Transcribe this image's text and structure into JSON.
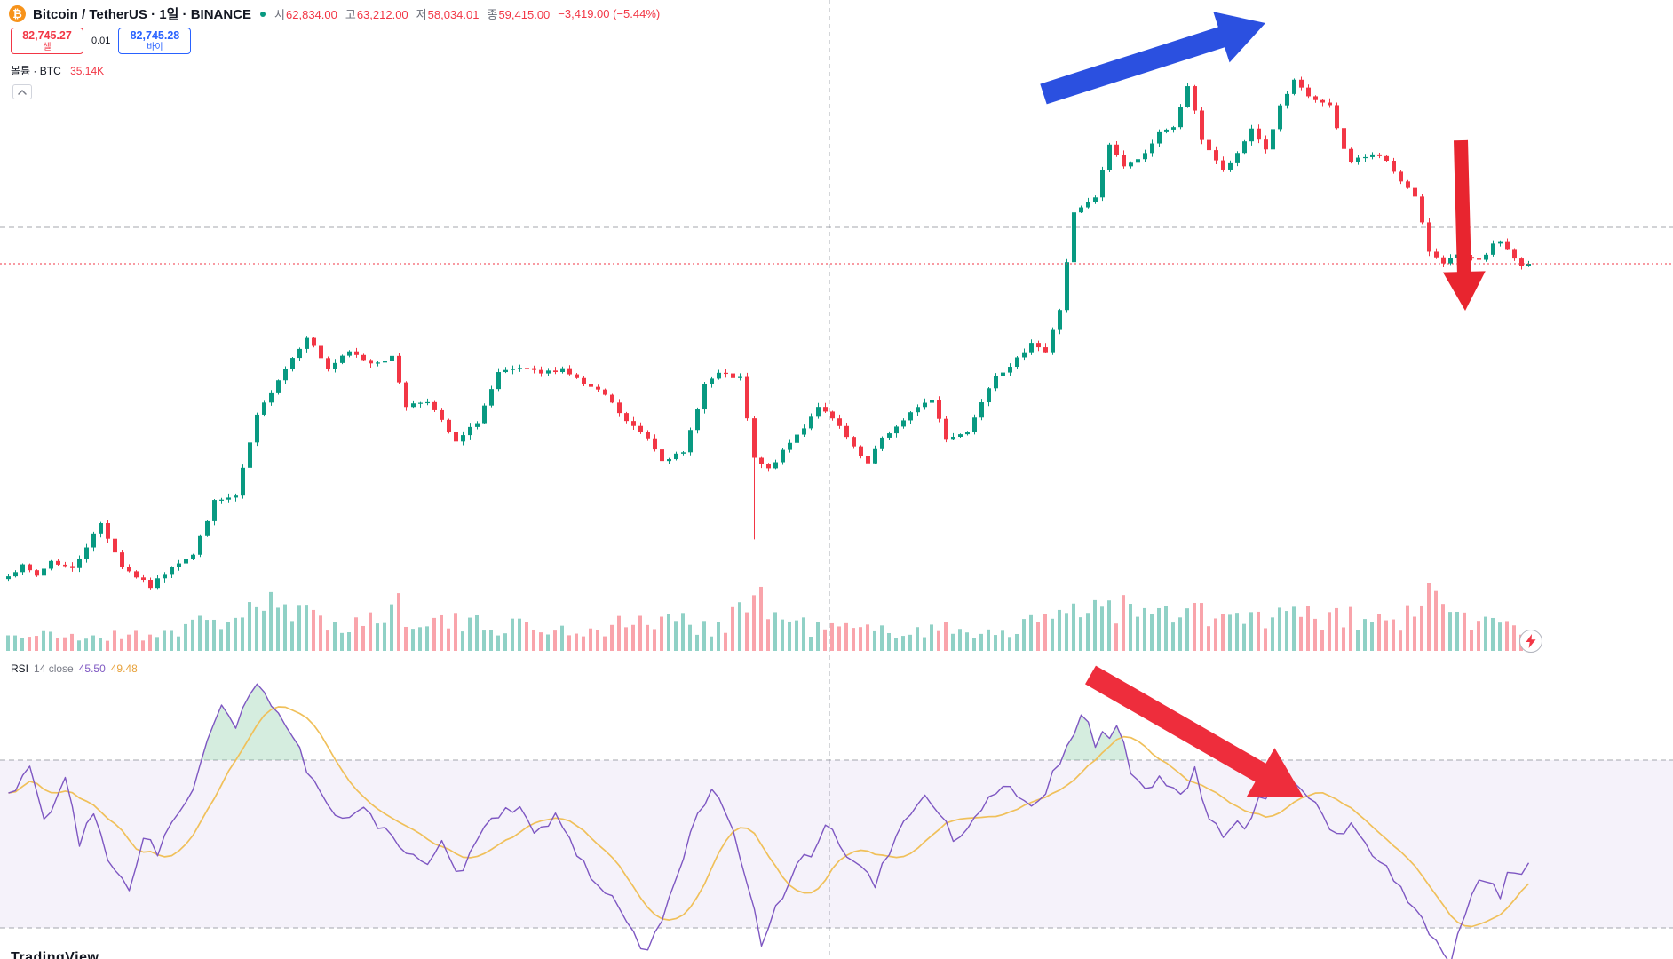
{
  "header": {
    "symbol_logo": "₿",
    "title": "Bitcoin / TetherUS · 1일 · BINANCE",
    "status_color": "#089981",
    "ohlc": [
      {
        "label": "시",
        "value": "62,834.00"
      },
      {
        "label": "고",
        "value": "63,212.00"
      },
      {
        "label": "저",
        "value": "58,034.01"
      },
      {
        "label": "종",
        "value": "59,415.00"
      }
    ],
    "change": "−3,419.00 (−5.44%)",
    "value_color": "#f23645"
  },
  "order_panel": {
    "sell_price": "82,745.27",
    "sell_label": "셀",
    "spread": "0.01",
    "buy_price": "82,745.28",
    "buy_label": "바이",
    "sell_color": "#f23645",
    "buy_color": "#2962ff"
  },
  "volume_row": {
    "label": "볼륨 · BTC",
    "value": "35.14K",
    "value_color": "#f23645"
  },
  "rsi_row": {
    "name": "RSI",
    "params": "14 close",
    "value": "45.50",
    "ma_value": "49.48",
    "value_color": "#7e57c2",
    "ma_color": "#e8a33d"
  },
  "watermark": "TradingView",
  "chart_data": [
    {
      "type": "candlestick",
      "title": "Bitcoin / TetherUS, 1D, BINANCE",
      "last_candle": {
        "open": 62834.0,
        "high": 63212.0,
        "low": 58034.01,
        "close": 59415.0,
        "change": -3419.0,
        "change_pct_text": "−5.44%"
      },
      "price_line_value": 59415.0,
      "n_candles": 215,
      "price_anchors": [
        [
          0,
          36400
        ],
        [
          2,
          37000
        ],
        [
          4,
          36300
        ],
        [
          6,
          37400
        ],
        [
          9,
          36800
        ],
        [
          13,
          40200
        ],
        [
          16,
          37000
        ],
        [
          20,
          35470
        ],
        [
          23,
          37050
        ],
        [
          26,
          37840
        ],
        [
          29,
          41790
        ],
        [
          32,
          42180
        ],
        [
          35,
          48110
        ],
        [
          38,
          50880
        ],
        [
          42,
          54040
        ],
        [
          45,
          51670
        ],
        [
          48,
          52860
        ],
        [
          51,
          52070
        ],
        [
          54,
          52460
        ],
        [
          56,
          48900
        ],
        [
          59,
          49300
        ],
        [
          63,
          46140
        ],
        [
          66,
          47720
        ],
        [
          69,
          51270
        ],
        [
          72,
          51670
        ],
        [
          75,
          51270
        ],
        [
          78,
          51670
        ],
        [
          81,
          50480
        ],
        [
          84,
          49690
        ],
        [
          87,
          47720
        ],
        [
          90,
          46530
        ],
        [
          92,
          44950
        ],
        [
          95,
          45350
        ],
        [
          98,
          50480
        ],
        [
          100,
          51270
        ],
        [
          103,
          50880
        ],
        [
          105,
          44950
        ],
        [
          107,
          44160
        ],
        [
          110,
          46140
        ],
        [
          112,
          47320
        ],
        [
          114,
          48900
        ],
        [
          117,
          47320
        ],
        [
          119,
          45740
        ],
        [
          121,
          44560
        ],
        [
          123,
          46530
        ],
        [
          126,
          47720
        ],
        [
          128,
          48900
        ],
        [
          130,
          49300
        ],
        [
          132,
          46530
        ],
        [
          135,
          46930
        ],
        [
          137,
          49300
        ],
        [
          139,
          51270
        ],
        [
          141,
          51670
        ],
        [
          144,
          53650
        ],
        [
          146,
          52860
        ],
        [
          148,
          56020
        ],
        [
          150,
          63130
        ],
        [
          153,
          64320
        ],
        [
          155,
          68270
        ],
        [
          157,
          66690
        ],
        [
          159,
          67080
        ],
        [
          162,
          69060
        ],
        [
          164,
          69450
        ],
        [
          166,
          72610
        ],
        [
          168,
          68660
        ],
        [
          171,
          66290
        ],
        [
          173,
          67480
        ],
        [
          175,
          69450
        ],
        [
          177,
          67870
        ],
        [
          179,
          71030
        ],
        [
          181,
          72900
        ],
        [
          183,
          71820
        ],
        [
          186,
          71030
        ],
        [
          188,
          67870
        ],
        [
          189,
          67080
        ],
        [
          192,
          67480
        ],
        [
          194,
          67080
        ],
        [
          195,
          66290
        ],
        [
          198,
          64320
        ],
        [
          200,
          60360
        ],
        [
          202,
          59570
        ],
        [
          204,
          59970
        ],
        [
          207,
          59570
        ],
        [
          209,
          60760
        ],
        [
          210,
          61150
        ],
        [
          213,
          59180
        ],
        [
          214,
          59415
        ]
      ],
      "wick_overrides": [
        [
          105,
          39000
        ]
      ],
      "volume_anchors": [
        [
          0,
          0.25
        ],
        [
          10,
          0.2
        ],
        [
          20,
          0.25
        ],
        [
          30,
          0.5
        ],
        [
          35,
          0.8
        ],
        [
          40,
          0.6
        ],
        [
          45,
          0.5
        ],
        [
          50,
          0.45
        ],
        [
          55,
          0.75
        ],
        [
          60,
          0.5
        ],
        [
          65,
          0.4
        ],
        [
          70,
          0.45
        ],
        [
          75,
          0.35
        ],
        [
          80,
          0.3
        ],
        [
          85,
          0.4
        ],
        [
          90,
          0.5
        ],
        [
          95,
          0.45
        ],
        [
          100,
          0.4
        ],
        [
          105,
          0.95
        ],
        [
          108,
          0.6
        ],
        [
          112,
          0.4
        ],
        [
          118,
          0.35
        ],
        [
          124,
          0.3
        ],
        [
          130,
          0.35
        ],
        [
          136,
          0.3
        ],
        [
          141,
          0.35
        ],
        [
          146,
          0.45
        ],
        [
          150,
          0.9
        ],
        [
          153,
          0.75
        ],
        [
          156,
          0.8
        ],
        [
          160,
          0.55
        ],
        [
          164,
          0.6
        ],
        [
          166,
          0.7
        ],
        [
          170,
          0.5
        ],
        [
          174,
          0.55
        ],
        [
          178,
          0.5
        ],
        [
          181,
          0.6
        ],
        [
          184,
          0.5
        ],
        [
          188,
          0.55
        ],
        [
          192,
          0.45
        ],
        [
          196,
          0.5
        ],
        [
          200,
          0.85
        ],
        [
          203,
          0.7
        ],
        [
          206,
          0.5
        ],
        [
          210,
          0.4
        ],
        [
          214,
          0.35
        ]
      ],
      "volume_text": "35.14K",
      "colors": {
        "up": "#089981",
        "down": "#f23645",
        "vol_up": "rgba(8,153,129,0.45)",
        "vol_down": "rgba(242,54,69,0.45)",
        "price_line": "#f23645",
        "grid_dash": "#9598a1"
      }
    },
    {
      "type": "line",
      "name": "RSI 14 close",
      "series": [
        {
          "name": "RSI",
          "current": 45.5
        },
        {
          "name": "RSI-based MA",
          "current": 49.48
        }
      ],
      "upper_band": 70,
      "lower_band": 30,
      "ma_period": 10,
      "rsi_anchors": [
        [
          1,
          62
        ],
        [
          3,
          70
        ],
        [
          5,
          55
        ],
        [
          8,
          65
        ],
        [
          10,
          50
        ],
        [
          12,
          58
        ],
        [
          14,
          45
        ],
        [
          17,
          40
        ],
        [
          19,
          52
        ],
        [
          21,
          48
        ],
        [
          23,
          55
        ],
        [
          26,
          62
        ],
        [
          28,
          75
        ],
        [
          30,
          82
        ],
        [
          32,
          78
        ],
        [
          35,
          88
        ],
        [
          37,
          84
        ],
        [
          39,
          79
        ],
        [
          41,
          72
        ],
        [
          43,
          64
        ],
        [
          45,
          58
        ],
        [
          47,
          55
        ],
        [
          50,
          60
        ],
        [
          52,
          55
        ],
        [
          54,
          52
        ],
        [
          56,
          48
        ],
        [
          59,
          44
        ],
        [
          61,
          50
        ],
        [
          63,
          42
        ],
        [
          65,
          48
        ],
        [
          68,
          55
        ],
        [
          70,
          60
        ],
        [
          72,
          58
        ],
        [
          74,
          52
        ],
        [
          77,
          56
        ],
        [
          79,
          50
        ],
        [
          81,
          46
        ],
        [
          83,
          40
        ],
        [
          86,
          35
        ],
        [
          88,
          28
        ],
        [
          90,
          25
        ],
        [
          92,
          33
        ],
        [
          95,
          45
        ],
        [
          97,
          58
        ],
        [
          99,
          62
        ],
        [
          101,
          58
        ],
        [
          104,
          40
        ],
        [
          106,
          27
        ],
        [
          108,
          35
        ],
        [
          110,
          42
        ],
        [
          113,
          48
        ],
        [
          115,
          55
        ],
        [
          117,
          50
        ],
        [
          120,
          44
        ],
        [
          122,
          40
        ],
        [
          124,
          48
        ],
        [
          126,
          55
        ],
        [
          129,
          62
        ],
        [
          131,
          58
        ],
        [
          133,
          50
        ],
        [
          135,
          55
        ],
        [
          138,
          60
        ],
        [
          140,
          65
        ],
        [
          142,
          62
        ],
        [
          144,
          58
        ],
        [
          147,
          66
        ],
        [
          149,
          72
        ],
        [
          151,
          82
        ],
        [
          153,
          74
        ],
        [
          156,
          78
        ],
        [
          158,
          68
        ],
        [
          160,
          63
        ],
        [
          162,
          66
        ],
        [
          165,
          61
        ],
        [
          167,
          67
        ],
        [
          169,
          57
        ],
        [
          171,
          52
        ],
        [
          174,
          55
        ],
        [
          176,
          60
        ],
        [
          178,
          63
        ],
        [
          180,
          67
        ],
        [
          183,
          61
        ],
        [
          185,
          57
        ],
        [
          187,
          52
        ],
        [
          189,
          55
        ],
        [
          192,
          47
        ],
        [
          194,
          44
        ],
        [
          196,
          40
        ],
        [
          198,
          34
        ],
        [
          201,
          26
        ],
        [
          203,
          22
        ],
        [
          205,
          34
        ],
        [
          207,
          42
        ],
        [
          210,
          38
        ],
        [
          211,
          44
        ],
        [
          213,
          43
        ],
        [
          214,
          45.5
        ]
      ],
      "colors": {
        "rsi": "#7e57c2",
        "ma": "#f0c05a",
        "band_fill": "rgba(126,87,194,0.08)",
        "band_line": "#9598a1",
        "overbought_fill": "rgba(104,192,140,0.28)"
      }
    }
  ],
  "annotations": [
    {
      "name": "blue-up-arrow",
      "shape": "arrow",
      "color": "#2b50e0",
      "from": [
        1175,
        106
      ],
      "to": [
        1425,
        26
      ],
      "shaft": 24,
      "head_len": 52,
      "head_w": 60
    },
    {
      "name": "red-down-arrow",
      "shape": "arrow",
      "color": "#e8252f",
      "from": [
        1645,
        158
      ],
      "to": [
        1650,
        350
      ],
      "shaft": 16,
      "head_len": 44,
      "head_w": 48
    },
    {
      "name": "red-rsi-arrow",
      "shape": "arrow",
      "color": "#ee2d3c",
      "from": [
        1228,
        760
      ],
      "to": [
        1468,
        898
      ],
      "shaft": 24,
      "head_len": 56,
      "head_w": 64
    }
  ]
}
